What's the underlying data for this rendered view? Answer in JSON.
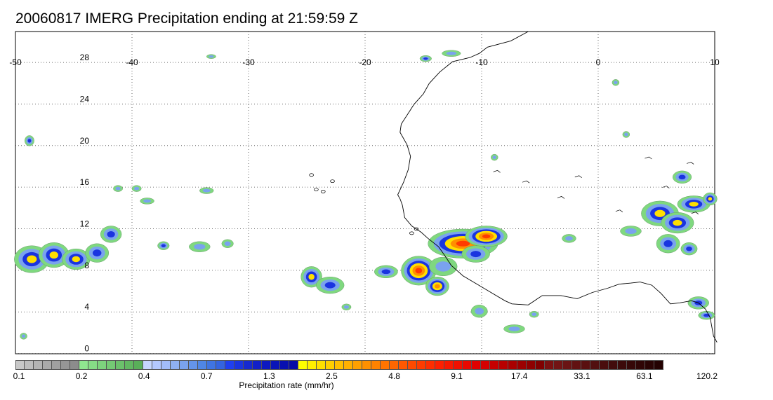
{
  "title": "20060817 IMERG Precipitation ending at 21:59:59 Z",
  "map": {
    "lon_range": [
      -50,
      10
    ],
    "lat_range": [
      -0.5,
      30.5
    ],
    "lon_labels": [
      "-50",
      "-40",
      "-30",
      "-20",
      "-10",
      "0",
      "10"
    ],
    "lat_labels": [
      "28",
      "24",
      "20",
      "16",
      "12",
      "8",
      "4",
      "0"
    ]
  },
  "colorbar": {
    "title": "Precipitation rate (mm/hr)",
    "tick_labels": [
      "0.1",
      "0.2",
      "0.4",
      "0.7",
      "1.3",
      "2.5",
      "4.8",
      "9.1",
      "17.4",
      "33.1",
      "63.1",
      "120.2"
    ],
    "colors": [
      "#c8c8c8",
      "#bebebe",
      "#b4b4b4",
      "#aaaaaa",
      "#a0a0a0",
      "#969696",
      "#8c8c8c",
      "#8fe58f",
      "#86dc86",
      "#7dd37d",
      "#74ca74",
      "#6bc16b",
      "#62b862",
      "#59af59",
      "#c6d6ff",
      "#b4c8ff",
      "#a2bcf8",
      "#8fb0f2",
      "#7aa2ee",
      "#6494ea",
      "#4f86e6",
      "#3f74e2",
      "#3464e0",
      "#1f3ff0",
      "#1a34e0",
      "#1629d0",
      "#1220c8",
      "#0d18c0",
      "#0a14b8",
      "#0810b0",
      "#060ca8",
      "#ffff00",
      "#ffef00",
      "#ffdf00",
      "#ffcf00",
      "#ffc000",
      "#ffb000",
      "#ffa000",
      "#ff9000",
      "#ff8200",
      "#ff7400",
      "#ff6600",
      "#ff5800",
      "#ff4a00",
      "#ff3c00",
      "#ff2e00",
      "#ff2000",
      "#f81800",
      "#f01000",
      "#e80800",
      "#e00000",
      "#d40000",
      "#c60000",
      "#b80000",
      "#aa0000",
      "#9c0000",
      "#8e0000",
      "#800000",
      "#7a1010",
      "#721414",
      "#6a1414",
      "#621212",
      "#5a1010",
      "#521010",
      "#4a0e0e",
      "#420c0c",
      "#3c0a0a",
      "#360808",
      "#300606",
      "#2a0404",
      "#240202"
    ]
  },
  "precip_colors": {
    "green": "#7fd87f",
    "lightblue": "#7aa2ee",
    "blue": "#1a34e0",
    "yellow": "#ffdf00",
    "orange": "#ff9000",
    "red": "#ff3c00",
    "gray": "#a0a0a0"
  }
}
